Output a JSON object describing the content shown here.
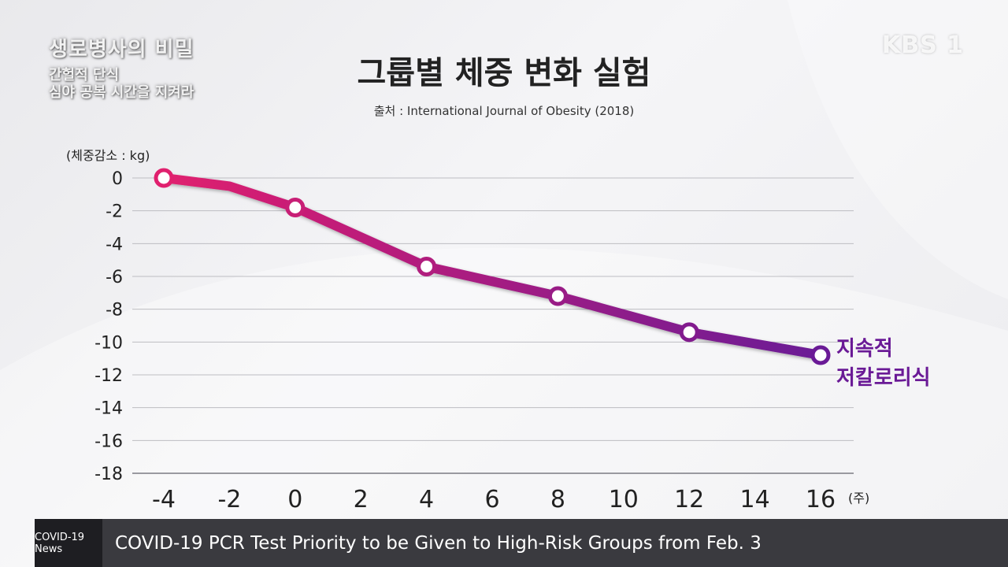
{
  "show": {
    "title": "생로병사의 비밀",
    "subtitle_line1": "간헐적 단식",
    "subtitle_line2": "심야 공복 시간을 지켜라"
  },
  "channel": "KBS 1",
  "ticker": {
    "tag": "COVID-19 News",
    "headline": "COVID-19 PCR Test Priority to be Given to High-Risk Groups from Feb. 3"
  },
  "colors": {
    "line_start": "#e0206e",
    "line_end": "#6a1a96",
    "grid": "#bdbdc2",
    "axis": "#9a9aa0"
  },
  "chart_data": {
    "type": "line",
    "title": "그룹별 체중 변화 실험",
    "source": "출처 : International Journal of Obesity (2018)",
    "ylabel": "(체중감소 : kg)",
    "xlabel_unit": "(주)",
    "x_ticks": [
      -4,
      -2,
      0,
      2,
      4,
      6,
      8,
      10,
      12,
      14,
      16
    ],
    "y_ticks": [
      0,
      -2,
      -4,
      -6,
      -8,
      -10,
      -12,
      -14,
      -16,
      -18
    ],
    "xlim": [
      -4,
      16
    ],
    "ylim": [
      -18,
      0
    ],
    "grid": true,
    "series": [
      {
        "name": "지속적 저칼로리식",
        "name_line1": "지속적",
        "name_line2": "저칼로리식",
        "x": [
          -4,
          -2,
          0,
          4,
          8,
          12,
          16
        ],
        "y": [
          0,
          -0.5,
          -1.8,
          -5.4,
          -7.2,
          -9.4,
          -10.8
        ],
        "markers_at": [
          -4,
          0,
          4,
          8,
          12,
          16
        ]
      }
    ]
  }
}
